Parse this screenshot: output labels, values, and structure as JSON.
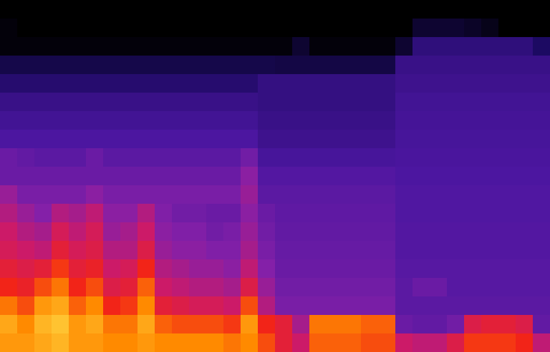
{
  "chart_data": {
    "type": "heatmap",
    "tick_labels": false,
    "color_range": [
      0,
      100
    ],
    "cells": [
      [
        0,
        0,
        0,
        0,
        0,
        0,
        0,
        0,
        0,
        0,
        0,
        0,
        0,
        0,
        0,
        0,
        0,
        0,
        0,
        0,
        0,
        0,
        0,
        0,
        0,
        0,
        0,
        0,
        0,
        0,
        0,
        0
      ],
      [
        2,
        0,
        0,
        0,
        0,
        0,
        0,
        0,
        0,
        0,
        0,
        0,
        0,
        0,
        0,
        0,
        0,
        0,
        0,
        0,
        0,
        0,
        0,
        0,
        10,
        10,
        10,
        8,
        5,
        0,
        0,
        0
      ],
      [
        2,
        2,
        2,
        2,
        2,
        2,
        2,
        2,
        2,
        2,
        2,
        2,
        2,
        2,
        2,
        2,
        2,
        10,
        2,
        2,
        2,
        2,
        2,
        10,
        28,
        28,
        28,
        28,
        28,
        28,
        28,
        20
      ],
      [
        15,
        15,
        15,
        15,
        15,
        15,
        15,
        15,
        15,
        15,
        15,
        15,
        15,
        15,
        15,
        15,
        14,
        14,
        14,
        14,
        14,
        14,
        14,
        32,
        32,
        32,
        32,
        32,
        32,
        32,
        32,
        32
      ],
      [
        24,
        24,
        24,
        24,
        24,
        24,
        24,
        24,
        24,
        24,
        24,
        24,
        24,
        24,
        24,
        30,
        30,
        30,
        30,
        30,
        30,
        30,
        30,
        34,
        34,
        34,
        34,
        34,
        34,
        34,
        34,
        34
      ],
      [
        32,
        32,
        32,
        32,
        32,
        32,
        32,
        32,
        32,
        32,
        32,
        32,
        32,
        32,
        32,
        30,
        30,
        30,
        30,
        30,
        30,
        30,
        30,
        36,
        36,
        36,
        36,
        36,
        36,
        36,
        36,
        36
      ],
      [
        36,
        36,
        36,
        36,
        36,
        36,
        36,
        36,
        36,
        36,
        36,
        36,
        36,
        36,
        36,
        32,
        32,
        32,
        32,
        32,
        32,
        32,
        32,
        37,
        37,
        37,
        37,
        37,
        37,
        37,
        37,
        37
      ],
      [
        40,
        40,
        40,
        40,
        40,
        40,
        40,
        40,
        40,
        40,
        40,
        40,
        40,
        40,
        40,
        34,
        34,
        34,
        34,
        34,
        34,
        34,
        34,
        38,
        38,
        38,
        38,
        38,
        38,
        38,
        38,
        38
      ],
      [
        48,
        46,
        44,
        44,
        44,
        48,
        44,
        44,
        44,
        44,
        44,
        44,
        44,
        44,
        50,
        38,
        38,
        38,
        38,
        38,
        38,
        38,
        38,
        39,
        39,
        39,
        39,
        39,
        39,
        39,
        39,
        39
      ],
      [
        48,
        48,
        48,
        48,
        48,
        48,
        48,
        48,
        48,
        48,
        48,
        48,
        48,
        48,
        56,
        42,
        42,
        42,
        42,
        42,
        42,
        42,
        42,
        40,
        40,
        40,
        40,
        40,
        40,
        40,
        40,
        40
      ],
      [
        58,
        52,
        52,
        52,
        52,
        56,
        52,
        52,
        52,
        52,
        52,
        52,
        52,
        52,
        58,
        44,
        44,
        44,
        44,
        44,
        44,
        44,
        44,
        41,
        41,
        41,
        41,
        41,
        41,
        41,
        41,
        41
      ],
      [
        62,
        58,
        55,
        62,
        60,
        64,
        56,
        56,
        62,
        54,
        50,
        50,
        48,
        48,
        56,
        48,
        45,
        45,
        45,
        45,
        45,
        45,
        45,
        41,
        41,
        41,
        41,
        41,
        41,
        41,
        41,
        41
      ],
      [
        66,
        62,
        60,
        68,
        64,
        68,
        58,
        60,
        66,
        56,
        54,
        54,
        50,
        52,
        58,
        50,
        46,
        46,
        46,
        46,
        46,
        46,
        46,
        42,
        42,
        42,
        42,
        42,
        42,
        42,
        42,
        42
      ],
      [
        68,
        66,
        64,
        72,
        68,
        70,
        62,
        62,
        70,
        58,
        56,
        56,
        54,
        54,
        60,
        52,
        47,
        47,
        47,
        47,
        47,
        47,
        47,
        42,
        42,
        42,
        42,
        42,
        42,
        42,
        42,
        42
      ],
      [
        72,
        70,
        72,
        78,
        72,
        74,
        66,
        68,
        76,
        62,
        60,
        58,
        58,
        56,
        64,
        55,
        48,
        48,
        48,
        48,
        48,
        48,
        48,
        43,
        43,
        43,
        43,
        43,
        43,
        43,
        43,
        43
      ],
      [
        76,
        74,
        80,
        84,
        76,
        80,
        70,
        72,
        82,
        66,
        64,
        62,
        62,
        60,
        70,
        58,
        50,
        50,
        50,
        50,
        50,
        50,
        50,
        44,
        48,
        48,
        43,
        43,
        43,
        43,
        43,
        43
      ],
      [
        84,
        80,
        88,
        90,
        82,
        86,
        76,
        78,
        86,
        72,
        70,
        68,
        68,
        66,
        80,
        62,
        52,
        52,
        52,
        52,
        52,
        52,
        52,
        44,
        44,
        44,
        44,
        44,
        44,
        44,
        44,
        44
      ],
      [
        90,
        86,
        92,
        94,
        88,
        90,
        84,
        84,
        90,
        82,
        80,
        80,
        80,
        78,
        88,
        76,
        72,
        60,
        84,
        84,
        84,
        82,
        82,
        48,
        46,
        46,
        50,
        70,
        72,
        72,
        70,
        46
      ],
      [
        88,
        88,
        90,
        92,
        88,
        88,
        86,
        86,
        88,
        86,
        86,
        86,
        86,
        84,
        86,
        80,
        72,
        66,
        82,
        82,
        82,
        80,
        80,
        66,
        64,
        64,
        70,
        78,
        78,
        78,
        76,
        64
      ]
    ]
  }
}
